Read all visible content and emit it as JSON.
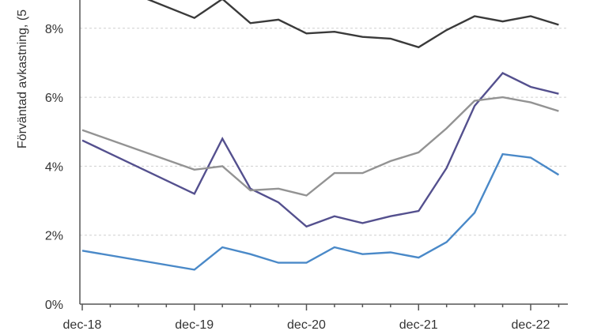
{
  "chart_data": {
    "type": "line",
    "title": "",
    "ylabel": "Förväntad avkastning, (5",
    "xlabel": "",
    "x_ticks": [
      "dec-18",
      "dec-19",
      "dec-20",
      "dec-21",
      "dec-22"
    ],
    "y_ticks": [
      "0%",
      "2%",
      "4%",
      "6%",
      "8%"
    ],
    "ylim": [
      0,
      9
    ],
    "xlim": [
      "2018-12",
      "2023-04"
    ],
    "grid": true,
    "legend": "none",
    "series": [
      {
        "color": "#3a3a3a",
        "points": [
          [
            "2018-12",
            9.6
          ],
          [
            "2019-12",
            8.3
          ],
          [
            "2020-03",
            8.85
          ],
          [
            "2020-06",
            8.15
          ],
          [
            "2020-09",
            8.25
          ],
          [
            "2020-12",
            7.85
          ],
          [
            "2021-03",
            7.9
          ],
          [
            "2021-06",
            7.75
          ],
          [
            "2021-09",
            7.7
          ],
          [
            "2021-12",
            7.45
          ],
          [
            "2022-03",
            7.95
          ],
          [
            "2022-06",
            8.35
          ],
          [
            "2022-09",
            8.2
          ],
          [
            "2022-12",
            8.35
          ],
          [
            "2023-03",
            8.1
          ]
        ]
      },
      {
        "color": "#54508e",
        "points": [
          [
            "2018-12",
            4.75
          ],
          [
            "2019-12",
            3.2
          ],
          [
            "2020-03",
            4.8
          ],
          [
            "2020-06",
            3.35
          ],
          [
            "2020-09",
            2.95
          ],
          [
            "2020-12",
            2.25
          ],
          [
            "2021-03",
            2.55
          ],
          [
            "2021-06",
            2.35
          ],
          [
            "2021-09",
            2.55
          ],
          [
            "2021-12",
            2.7
          ],
          [
            "2022-03",
            3.95
          ],
          [
            "2022-06",
            5.75
          ],
          [
            "2022-09",
            6.7
          ],
          [
            "2022-12",
            6.3
          ],
          [
            "2023-03",
            6.1
          ]
        ]
      },
      {
        "color": "#939393",
        "points": [
          [
            "2018-12",
            5.05
          ],
          [
            "2019-12",
            3.9
          ],
          [
            "2020-03",
            4.0
          ],
          [
            "2020-06",
            3.3
          ],
          [
            "2020-09",
            3.35
          ],
          [
            "2020-12",
            3.15
          ],
          [
            "2021-03",
            3.8
          ],
          [
            "2021-06",
            3.8
          ],
          [
            "2021-09",
            4.15
          ],
          [
            "2021-12",
            4.4
          ],
          [
            "2022-03",
            5.1
          ],
          [
            "2022-06",
            5.9
          ],
          [
            "2022-09",
            6.0
          ],
          [
            "2022-12",
            5.85
          ],
          [
            "2023-03",
            5.6
          ]
        ]
      },
      {
        "color": "#4a89c8",
        "points": [
          [
            "2018-12",
            1.55
          ],
          [
            "2019-12",
            1.0
          ],
          [
            "2020-03",
            1.65
          ],
          [
            "2020-06",
            1.45
          ],
          [
            "2020-09",
            1.2
          ],
          [
            "2020-12",
            1.2
          ],
          [
            "2021-03",
            1.65
          ],
          [
            "2021-06",
            1.45
          ],
          [
            "2021-09",
            1.5
          ],
          [
            "2021-12",
            1.35
          ],
          [
            "2022-03",
            1.8
          ],
          [
            "2022-06",
            2.65
          ],
          [
            "2022-09",
            4.35
          ],
          [
            "2022-12",
            4.25
          ],
          [
            "2023-03",
            3.75
          ]
        ]
      }
    ]
  }
}
